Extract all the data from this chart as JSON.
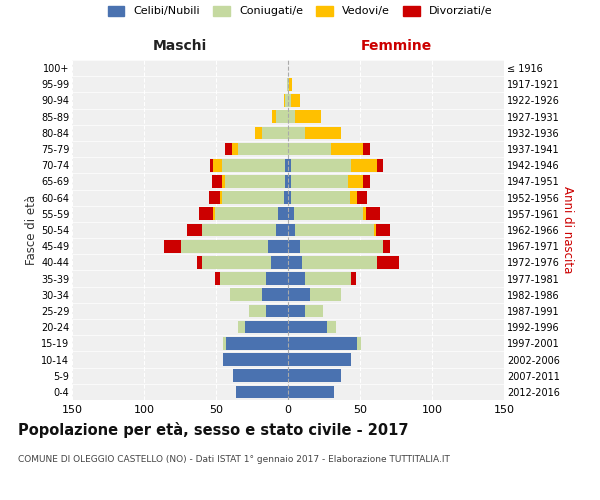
{
  "age_groups": [
    "0-4",
    "5-9",
    "10-14",
    "15-19",
    "20-24",
    "25-29",
    "30-34",
    "35-39",
    "40-44",
    "45-49",
    "50-54",
    "55-59",
    "60-64",
    "65-69",
    "70-74",
    "75-79",
    "80-84",
    "85-89",
    "90-94",
    "95-99",
    "100+"
  ],
  "birth_years": [
    "2012-2016",
    "2007-2011",
    "2002-2006",
    "1997-2001",
    "1992-1996",
    "1987-1991",
    "1982-1986",
    "1977-1981",
    "1972-1976",
    "1967-1971",
    "1962-1966",
    "1957-1961",
    "1952-1956",
    "1947-1951",
    "1942-1946",
    "1937-1941",
    "1932-1936",
    "1927-1931",
    "1922-1926",
    "1917-1921",
    "≤ 1916"
  ],
  "male": {
    "celibi": [
      36,
      38,
      45,
      43,
      30,
      15,
      18,
      15,
      12,
      14,
      8,
      7,
      3,
      2,
      2,
      0,
      0,
      0,
      0,
      0,
      0
    ],
    "coniugati": [
      0,
      0,
      0,
      2,
      5,
      12,
      22,
      32,
      48,
      60,
      52,
      44,
      43,
      42,
      44,
      35,
      18,
      8,
      2,
      1,
      0
    ],
    "vedovi": [
      0,
      0,
      0,
      0,
      0,
      0,
      0,
      0,
      0,
      0,
      0,
      1,
      1,
      2,
      6,
      4,
      5,
      3,
      1,
      0,
      0
    ],
    "divorziati": [
      0,
      0,
      0,
      0,
      0,
      0,
      0,
      4,
      3,
      12,
      10,
      10,
      8,
      7,
      2,
      5,
      0,
      0,
      0,
      0,
      0
    ]
  },
  "female": {
    "nubili": [
      32,
      37,
      44,
      48,
      27,
      12,
      15,
      12,
      10,
      8,
      5,
      4,
      2,
      2,
      2,
      0,
      0,
      0,
      0,
      0,
      0
    ],
    "coniugate": [
      0,
      0,
      0,
      3,
      6,
      12,
      22,
      32,
      52,
      58,
      55,
      48,
      41,
      40,
      42,
      30,
      12,
      5,
      2,
      1,
      0
    ],
    "vedove": [
      0,
      0,
      0,
      0,
      0,
      0,
      0,
      0,
      0,
      0,
      1,
      2,
      5,
      10,
      18,
      22,
      25,
      18,
      6,
      2,
      0
    ],
    "divorziate": [
      0,
      0,
      0,
      0,
      0,
      0,
      0,
      3,
      15,
      5,
      10,
      10,
      7,
      5,
      4,
      5,
      0,
      0,
      0,
      0,
      0
    ]
  },
  "colors": {
    "celibi_nubili": "#4a72b0",
    "coniugati": "#c5d9a0",
    "vedovi": "#ffc000",
    "divorziati": "#cc0000"
  },
  "xlim": 150,
  "title": "Popolazione per età, sesso e stato civile - 2017",
  "subtitle": "COMUNE DI OLEGGIO CASTELLO (NO) - Dati ISTAT 1° gennaio 2017 - Elaborazione TUTTITALIA.IT",
  "xlabel_left": "Maschi",
  "xlabel_right": "Femmine",
  "ylabel_left": "Fasce di età",
  "ylabel_right": "Anni di nascita",
  "bg_color": "#ffffff",
  "plot_bg_color": "#f0f0f0",
  "grid_color": "#cccccc"
}
